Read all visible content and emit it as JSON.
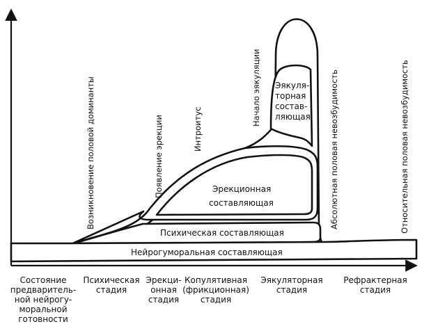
{
  "components": {
    "neurohumoral": "Нейрогуморальная составляющая",
    "psychic": "Психическая составляющая",
    "erection": [
      "Эрекционная",
      "составляющая"
    ],
    "ejaculation": [
      "Эякуля-",
      "торная",
      "состав-",
      "ляющая"
    ]
  },
  "events": {
    "dominant": "Возникновение половой доминанты",
    "erection_onset": "Появление эрекции",
    "introitus": "Интроитус",
    "ejaculation_onset": "Начало эякуляции",
    "absolute_refractory": "Абсолютная половая невозбудимость",
    "relative_refractory": "Относительная половая невозбудимость"
  },
  "stages": {
    "readiness": "Состояние\nпредваритель-\nной нейрогу-\nморальной\nготовности",
    "psychic": "Психическая\nстадия",
    "erection": "Эрекци-\nонная\nстадия",
    "copulative": "Копулятивная\n(фрикционная)\nстадия",
    "ejaculatory": "Эякуляторная\nстадия",
    "refractory": "Рефрактерная\nстадия"
  }
}
